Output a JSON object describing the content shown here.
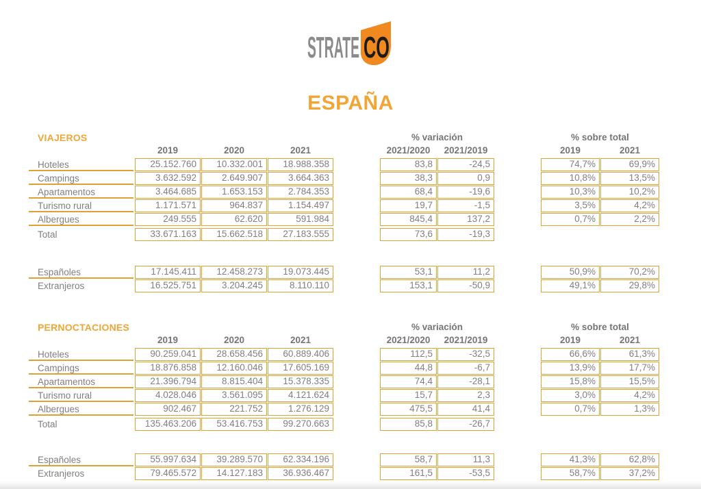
{
  "logo": {
    "text_gray": "STRATE",
    "text_black": "CO"
  },
  "title": "ESPAÑA",
  "colors": {
    "accent_border": "#dfa132",
    "accent_title": "#f1a537",
    "logo_orange": "#f0891f",
    "logo_gray": "#8b8b8b",
    "text_gray": "#7f7f7f",
    "header_gray": "#757575"
  },
  "sections": [
    {
      "id": "viajeros",
      "title": "VIAJEROS",
      "variation_title": "% variación",
      "share_title": "% sobre total",
      "value_years": [
        "2019",
        "2020",
        "2021"
      ],
      "variation_cols": [
        "2021/2020",
        "2021/2019"
      ],
      "share_years": [
        "2019",
        "2021"
      ],
      "rows": [
        {
          "label": "Hoteles",
          "values": [
            "25.152.760",
            "10.332.001",
            "18.988.358"
          ],
          "variation": [
            "83,8",
            "-24,5"
          ],
          "share": [
            "74,7%",
            "69,9%"
          ]
        },
        {
          "label": "Campings",
          "values": [
            "3.632.592",
            "2.649.907",
            "3.664.363"
          ],
          "variation": [
            "38,3",
            "0,9"
          ],
          "share": [
            "10,8%",
            "13,5%"
          ]
        },
        {
          "label": "Apartamentos",
          "values": [
            "3.464.685",
            "1.653.153",
            "2.784.353"
          ],
          "variation": [
            "68,4",
            "-19,6"
          ],
          "share": [
            "10,3%",
            "10,2%"
          ]
        },
        {
          "label": "Turismo rural",
          "values": [
            "1.171.571",
            "964.837",
            "1.154.497"
          ],
          "variation": [
            "19,7",
            "-1,5"
          ],
          "share": [
            "3,5%",
            "4,2%"
          ]
        },
        {
          "label": "Albergues",
          "values": [
            "249.555",
            "62.620",
            "591.984"
          ],
          "variation": [
            "845,4",
            "137,2"
          ],
          "share": [
            "0,7%",
            "2,2%"
          ]
        }
      ],
      "total": {
        "label": "Total",
        "values": [
          "33.671.163",
          "15.662.518",
          "27.183.555"
        ],
        "variation": [
          "73,6",
          "-19,3"
        ],
        "share": []
      },
      "origin": [
        {
          "label": "Españoles",
          "values": [
            "17.145.411",
            "12.458.273",
            "19.073.445"
          ],
          "variation": [
            "53,1",
            "11,2"
          ],
          "share": [
            "50,9%",
            "70,2%"
          ]
        },
        {
          "label": "Extranjeros",
          "values": [
            "16.525.751",
            "3.204.245",
            "8.110.110"
          ],
          "variation": [
            "153,1",
            "-50,9"
          ],
          "share": [
            "49,1%",
            "29,8%"
          ]
        }
      ]
    },
    {
      "id": "pernoctaciones",
      "title": "PERNOCTACIONES",
      "variation_title": "% variación",
      "share_title": "% sobre total",
      "value_years": [
        "2019",
        "2020",
        "2021"
      ],
      "variation_cols": [
        "2021/2020",
        "2021/2019"
      ],
      "share_years": [
        "2019",
        "2021"
      ],
      "rows": [
        {
          "label": "Hoteles",
          "values": [
            "90.259.041",
            "28.658.456",
            "60.889.406"
          ],
          "variation": [
            "112,5",
            "-32,5"
          ],
          "share": [
            "66,6%",
            "61,3%"
          ]
        },
        {
          "label": "Campings",
          "values": [
            "18.876.858",
            "12.160.046",
            "17.605.169"
          ],
          "variation": [
            "44,8",
            "-6,7"
          ],
          "share": [
            "13,9%",
            "17,7%"
          ]
        },
        {
          "label": "Apartamentos",
          "values": [
            "21.396.794",
            "8.815.404",
            "15.378.335"
          ],
          "variation": [
            "74,4",
            "-28,1"
          ],
          "share": [
            "15,8%",
            "15,5%"
          ]
        },
        {
          "label": "Turismo rural",
          "values": [
            "4.028.046",
            "3.561.095",
            "4.121.624"
          ],
          "variation": [
            "15,7",
            "2,3"
          ],
          "share": [
            "3,0%",
            "4,2%"
          ]
        },
        {
          "label": "Albergues",
          "values": [
            "902.467",
            "221.752",
            "1.276.129"
          ],
          "variation": [
            "475,5",
            "41,4"
          ],
          "share": [
            "0,7%",
            "1,3%"
          ]
        }
      ],
      "total": {
        "label": "Total",
        "values": [
          "135.463.206",
          "53.416.753",
          "99.270.663"
        ],
        "variation": [
          "85,8",
          "-26,7"
        ],
        "share": []
      },
      "origin": [
        {
          "label": "Españoles",
          "values": [
            "55.997.634",
            "39.289.570",
            "62.334.196"
          ],
          "variation": [
            "58,7",
            "11,3"
          ],
          "share": [
            "41,3%",
            "62,8%"
          ]
        },
        {
          "label": "Extranjeros",
          "values": [
            "79.465.572",
            "14.127.183",
            "36.936.467"
          ],
          "variation": [
            "161,5",
            "-53,5"
          ],
          "share": [
            "58,7%",
            "37,2%"
          ]
        }
      ]
    }
  ]
}
